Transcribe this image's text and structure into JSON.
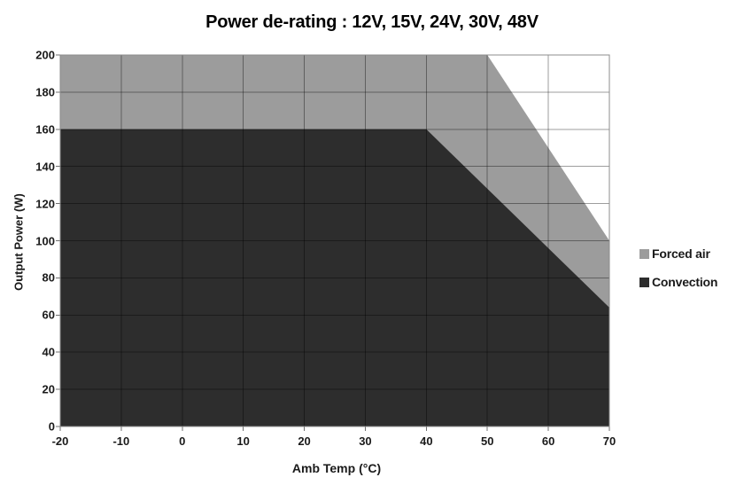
{
  "chart_data": {
    "type": "area",
    "title": "Power de-rating : 12V, 15V, 24V, 30V, 48V",
    "xlabel": "Amb Temp (°C)",
    "ylabel": "Output Power (W)",
    "xlim": [
      -20,
      70
    ],
    "ylim": [
      0,
      200
    ],
    "x_ticks": [
      -20,
      -10,
      0,
      10,
      20,
      30,
      40,
      50,
      60,
      70
    ],
    "y_ticks": [
      0,
      20,
      40,
      60,
      80,
      100,
      120,
      140,
      160,
      180,
      200
    ],
    "grid": true,
    "legend_position": "right",
    "series": [
      {
        "name": "Forced air",
        "color": "#9c9c9c",
        "points": [
          [
            -20,
            200
          ],
          [
            50,
            200
          ],
          [
            70,
            100
          ]
        ]
      },
      {
        "name": "Convection",
        "color": "#2d2d2d",
        "points": [
          [
            -20,
            160
          ],
          [
            40,
            160
          ],
          [
            70,
            64
          ]
        ]
      }
    ],
    "colors": {
      "plot_border": "#8c8c8c",
      "grid_overlay": "rgba(0,0,0,0.38)",
      "tick_mark": "#707070",
      "text": "#1a1a1a",
      "background": "#ffffff"
    }
  }
}
